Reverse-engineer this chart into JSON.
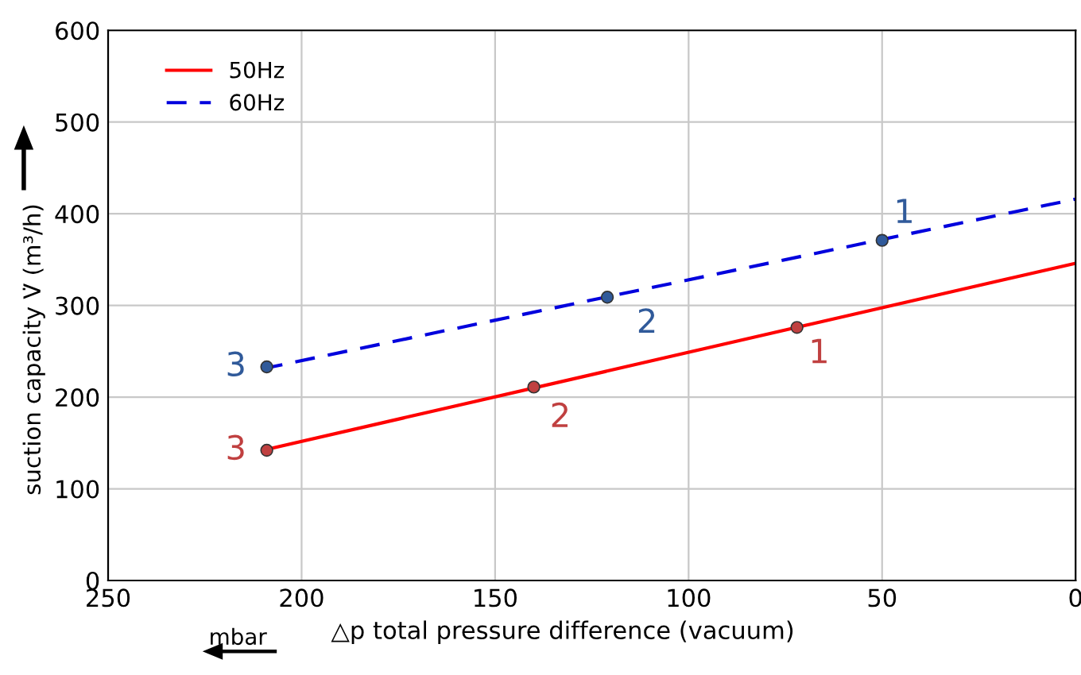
{
  "chart_data": {
    "type": "line",
    "xlabel": "△p total pressure difference (vacuum)",
    "ylabel": "suction capacity V̇ (m³/h)",
    "xlim": [
      250,
      0
    ],
    "xticks": [
      250,
      200,
      150,
      100,
      50,
      0
    ],
    "ylim": [
      0,
      600
    ],
    "yticks": [
      0,
      100,
      200,
      300,
      400,
      500,
      600
    ],
    "grid": true,
    "legend": "top left",
    "series": [
      {
        "name": "50Hz",
        "color": "#ff0000",
        "line_style": "solid",
        "x": [
          210,
          0
        ],
        "values": [
          142,
          346
        ]
      },
      {
        "name": "60Hz",
        "color": "#0000dd",
        "line_style": "dashed",
        "x": [
          210,
          0
        ],
        "values": [
          231,
          416
        ]
      },
      {
        "color": "#c04040",
        "type": "scatter",
        "marker": "circle",
        "x": [
          72,
          140,
          209
        ],
        "values": [
          276,
          211,
          142
        ]
      },
      {
        "color": "#305a9a",
        "type": "scatter",
        "marker": "circle",
        "x": [
          50,
          121,
          209
        ],
        "values": [
          371,
          309,
          233
        ]
      }
    ],
    "annotations": [
      {
        "text": "1",
        "x": 72,
        "y": 276
      },
      {
        "text": "2",
        "x": 140,
        "y": 211
      },
      {
        "text": "3",
        "x": 209,
        "y": 142
      },
      {
        "text": "1",
        "x": 50,
        "y": 371
      },
      {
        "text": "2",
        "x": 121,
        "y": 309
      },
      {
        "text": "3",
        "x": 209,
        "y": 233
      },
      "mbar"
    ]
  }
}
